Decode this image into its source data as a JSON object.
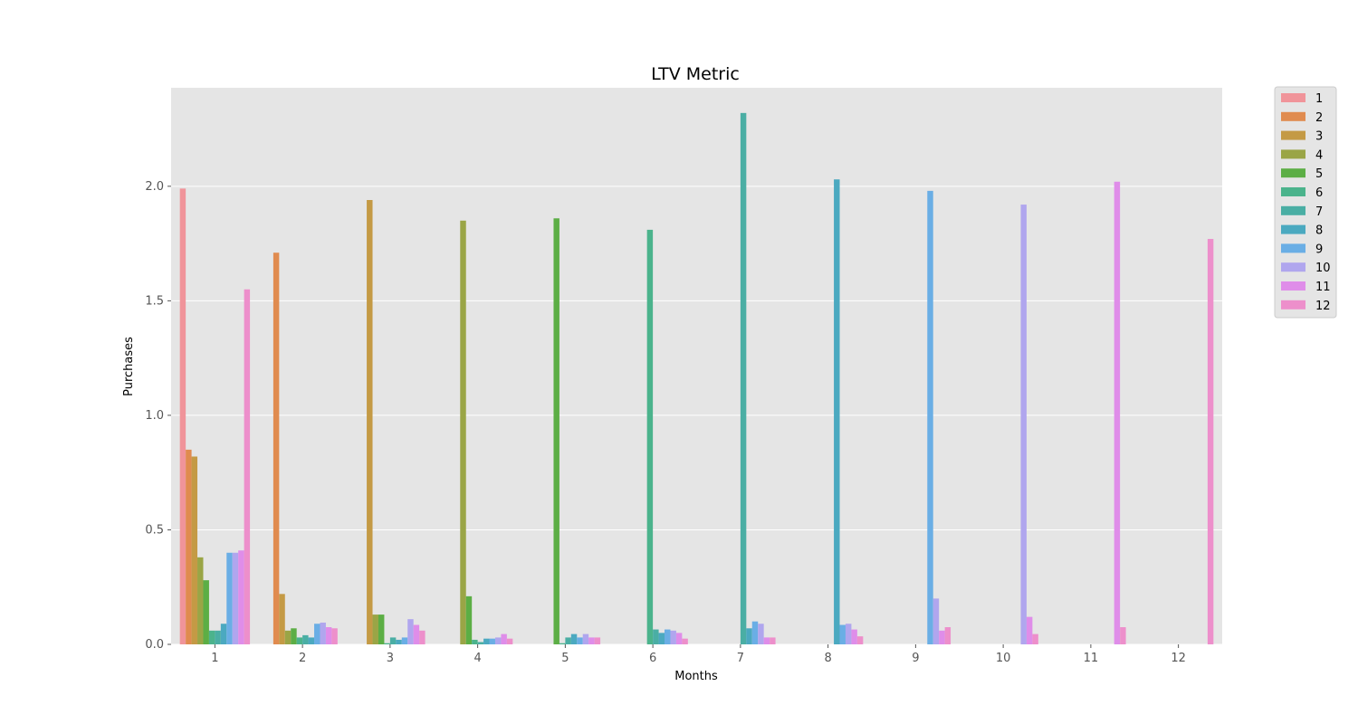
{
  "chart_data": {
    "type": "bar",
    "title": "LTV Metric",
    "xlabel": "Months",
    "ylabel": "Purchases",
    "ylim": [
      0,
      2.43
    ],
    "yticks": [
      "0.0",
      "0.5",
      "1.0",
      "1.5",
      "2.0"
    ],
    "grid": true,
    "legend_position": "outside-top-right",
    "categories": [
      "1",
      "2",
      "3",
      "4",
      "5",
      "6",
      "7",
      "8",
      "9",
      "10",
      "11",
      "12"
    ],
    "series": [
      {
        "name": "1",
        "color": "#f0949a",
        "values": [
          1.99,
          0,
          0,
          0,
          0,
          0,
          0,
          0,
          0,
          0,
          0,
          0
        ]
      },
      {
        "name": "2",
        "color": "#e08b4f",
        "values": [
          0.85,
          1.71,
          0,
          0,
          0,
          0,
          0,
          0,
          0,
          0,
          0,
          0
        ]
      },
      {
        "name": "3",
        "color": "#c49a45",
        "values": [
          0.82,
          0.22,
          1.94,
          0,
          0,
          0,
          0,
          0,
          0,
          0,
          0,
          0
        ]
      },
      {
        "name": "4",
        "color": "#9aa546",
        "values": [
          0.38,
          0.06,
          0.13,
          1.85,
          0,
          0,
          0,
          0,
          0,
          0,
          0,
          0
        ]
      },
      {
        "name": "5",
        "color": "#5cae45",
        "values": [
          0.28,
          0.07,
          0.13,
          0.21,
          1.86,
          0,
          0,
          0,
          0,
          0,
          0,
          0
        ]
      },
      {
        "name": "6",
        "color": "#4bb38c",
        "values": [
          0.06,
          0.03,
          0.005,
          0.02,
          0.005,
          1.81,
          0,
          0,
          0,
          0,
          0,
          0
        ]
      },
      {
        "name": "7",
        "color": "#4aaea4",
        "values": [
          0.06,
          0.04,
          0.03,
          0.01,
          0.03,
          0.065,
          2.32,
          0,
          0,
          0,
          0,
          0
        ]
      },
      {
        "name": "8",
        "color": "#4ba9c0",
        "values": [
          0.09,
          0.03,
          0.02,
          0.025,
          0.045,
          0.05,
          0.07,
          2.03,
          0,
          0,
          0,
          0
        ]
      },
      {
        "name": "9",
        "color": "#6aaee5",
        "values": [
          0.4,
          0.09,
          0.03,
          0.025,
          0.03,
          0.065,
          0.1,
          0.085,
          1.98,
          0,
          0,
          0
        ]
      },
      {
        "name": "10",
        "color": "#b0a6ee",
        "values": [
          0.4,
          0.095,
          0.11,
          0.03,
          0.045,
          0.06,
          0.09,
          0.09,
          0.2,
          1.92,
          0,
          0
        ]
      },
      {
        "name": "11",
        "color": "#df8de9",
        "values": [
          0.41,
          0.075,
          0.085,
          0.045,
          0.03,
          0.05,
          0.03,
          0.065,
          0.06,
          0.12,
          2.02,
          0
        ]
      },
      {
        "name": "12",
        "color": "#ed8fcb",
        "values": [
          1.55,
          0.07,
          0.06,
          0.025,
          0.03,
          0.025,
          0.03,
          0.035,
          0.075,
          0.045,
          0.075,
          1.77
        ]
      }
    ]
  },
  "colors": {
    "plot_background": "#e5e5e5",
    "grid": "#ffffff",
    "tick_text": "#555555"
  }
}
